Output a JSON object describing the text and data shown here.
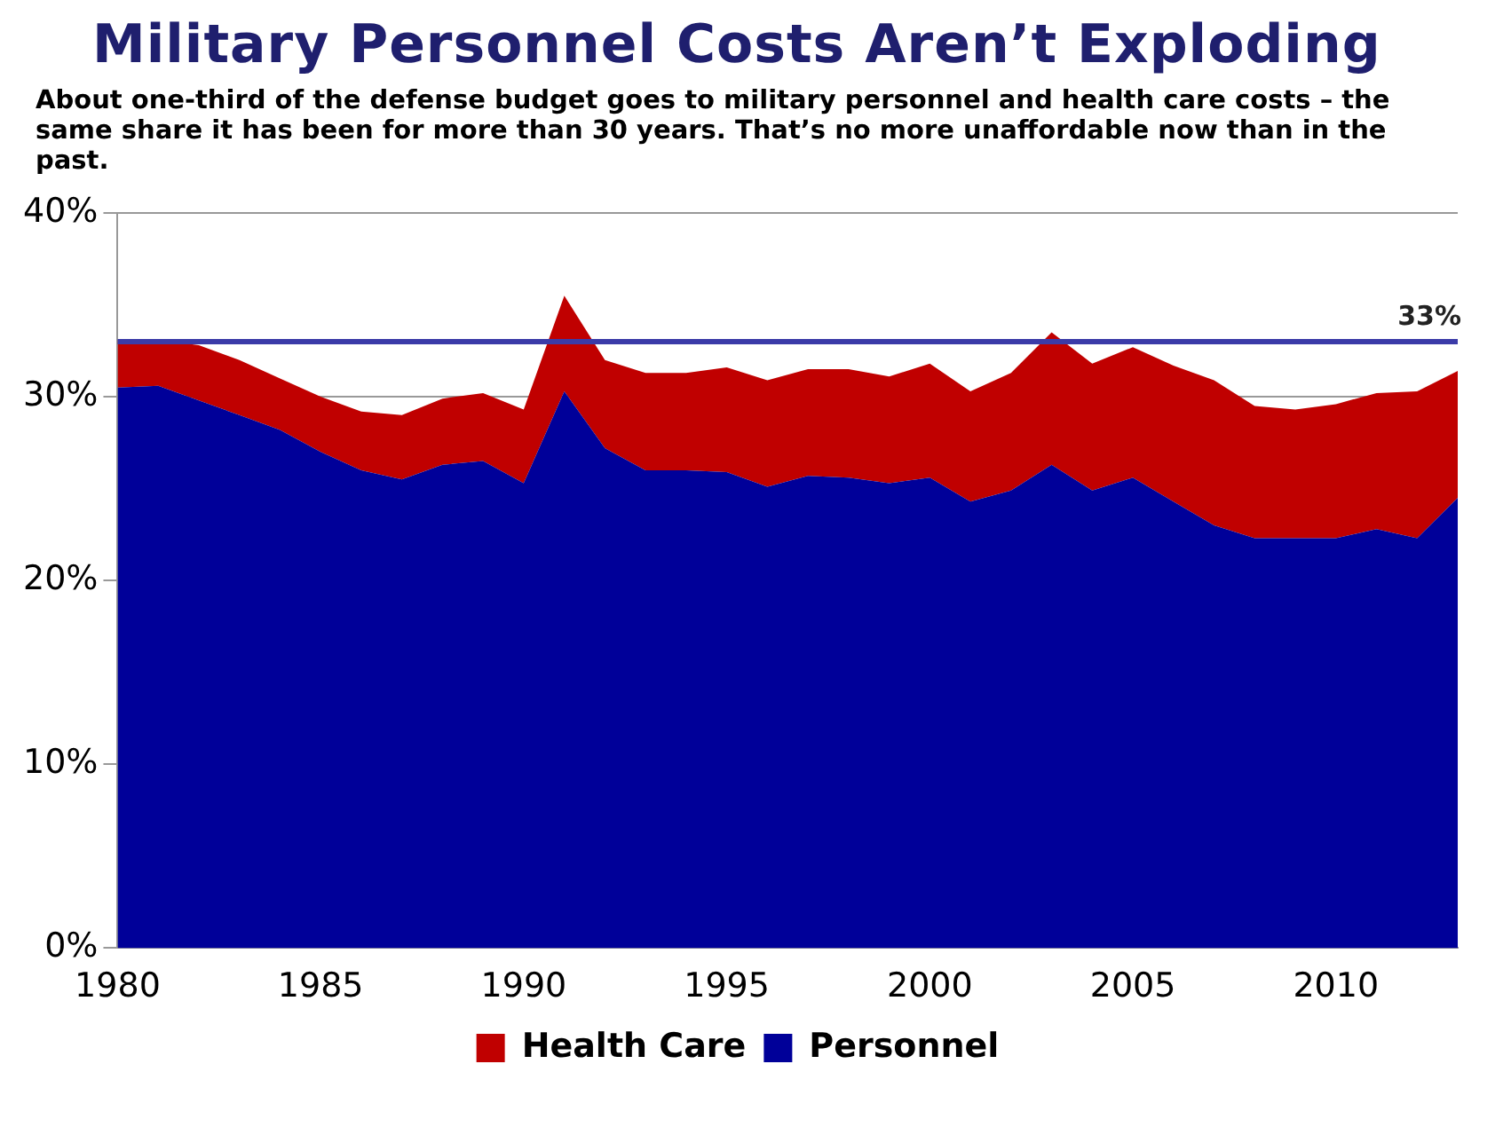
{
  "chart_data": {
    "type": "area",
    "title": "Military Personnel Costs Aren’t Exploding",
    "subtitle": "About one-third of the defense budget goes to military personnel and health care costs – the same share it has been for more than 30 years. That’s no more unaffordable now than in the past.",
    "x": [
      1980,
      1981,
      1982,
      1983,
      1984,
      1985,
      1986,
      1987,
      1988,
      1989,
      1990,
      1991,
      1992,
      1993,
      1994,
      1995,
      1996,
      1997,
      1998,
      1999,
      2000,
      2001,
      2002,
      2003,
      2004,
      2005,
      2006,
      2007,
      2008,
      2009,
      2010,
      2011,
      2012,
      2013
    ],
    "stacked": true,
    "series": [
      {
        "name": "Personnel",
        "color": "#000099",
        "values": [
          30.5,
          30.6,
          29.8,
          29.0,
          28.2,
          27.0,
          26.0,
          25.5,
          26.3,
          26.5,
          25.3,
          30.3,
          27.2,
          26.0,
          26.0,
          25.9,
          25.1,
          25.7,
          25.6,
          25.3,
          25.6,
          24.3,
          24.9,
          26.3,
          24.9,
          25.6,
          24.3,
          23.0,
          22.3,
          22.3,
          22.3,
          22.8,
          22.3,
          24.5
        ]
      },
      {
        "name": "Health Care",
        "color": "#c00000",
        "values": [
          2.6,
          2.5,
          3.0,
          3.0,
          2.8,
          3.0,
          3.2,
          3.5,
          3.6,
          3.7,
          4.0,
          5.2,
          4.8,
          5.3,
          5.3,
          5.7,
          5.8,
          5.8,
          5.9,
          5.8,
          6.2,
          6.0,
          6.4,
          7.2,
          6.9,
          7.1,
          7.4,
          7.9,
          7.2,
          7.0,
          7.3,
          7.4,
          8.0,
          6.9
        ]
      }
    ],
    "xlim": [
      1980,
      2013
    ],
    "xticks": [
      1980,
      1985,
      1990,
      1995,
      2000,
      2005,
      2010
    ],
    "ylim": [
      0,
      40
    ],
    "yticks": [
      {
        "value": 0,
        "label": "0%"
      },
      {
        "value": 10,
        "label": "10%"
      },
      {
        "value": 20,
        "label": "20%"
      },
      {
        "value": 30,
        "label": "30%"
      },
      {
        "value": 40,
        "label": "40%"
      }
    ],
    "ref_lines": [
      {
        "axis": "y",
        "value": 33,
        "label": "33%",
        "color": "#3b3ba8"
      }
    ],
    "grid": "y",
    "legend": "bottom"
  }
}
